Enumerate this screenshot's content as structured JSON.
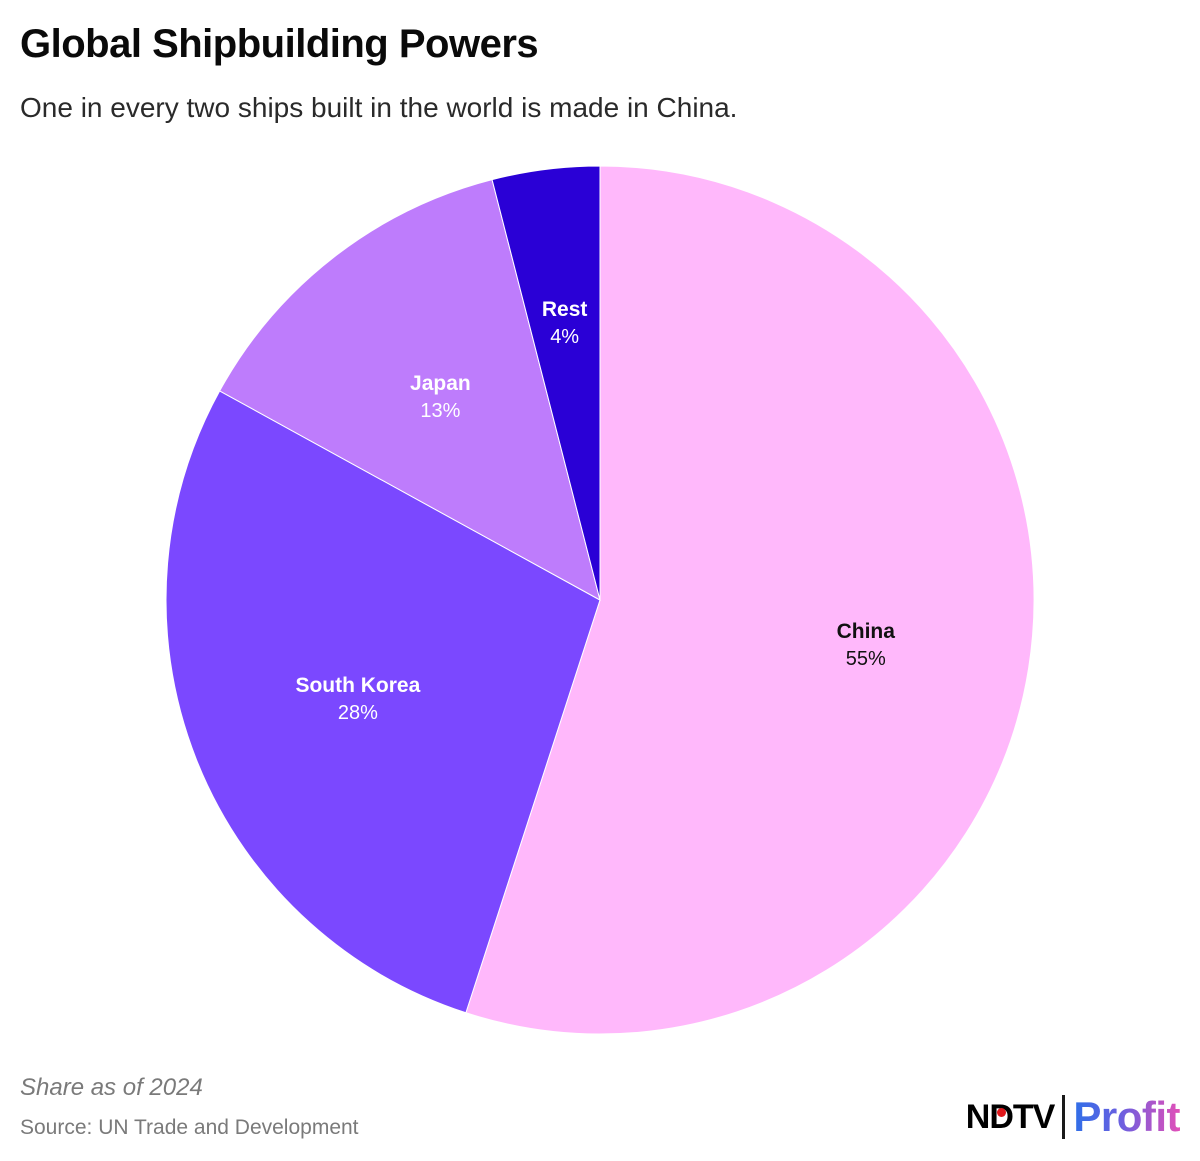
{
  "header": {
    "title": "Global Shipbuilding Powers",
    "subtitle": "One in every two ships built in the world is made in China."
  },
  "chart_data": {
    "type": "pie",
    "title": "Global Shipbuilding Powers",
    "subtitle": "One in every two ships built in the world is made in China.",
    "start": "12 o'clock",
    "direction": "clockwise",
    "slices": [
      {
        "label": "China",
        "value": 55,
        "display": "55%",
        "color": "#ffb8fb",
        "label_color": "#111111"
      },
      {
        "label": "South Korea",
        "value": 28,
        "display": "28%",
        "color": "#7b48ff",
        "label_color": "#ffffff"
      },
      {
        "label": "Japan",
        "value": 13,
        "display": "13%",
        "color": "#be7cfc",
        "label_color": "#ffffff"
      },
      {
        "label": "Rest",
        "value": 4,
        "display": "4%",
        "color": "#2a00d6",
        "label_color": "#ffffff"
      }
    ]
  },
  "footer": {
    "note": "Share as of 2024",
    "source": "Source: UN Trade and Development"
  },
  "logo": {
    "ndtv": "NDTV",
    "profit": "Profit"
  }
}
